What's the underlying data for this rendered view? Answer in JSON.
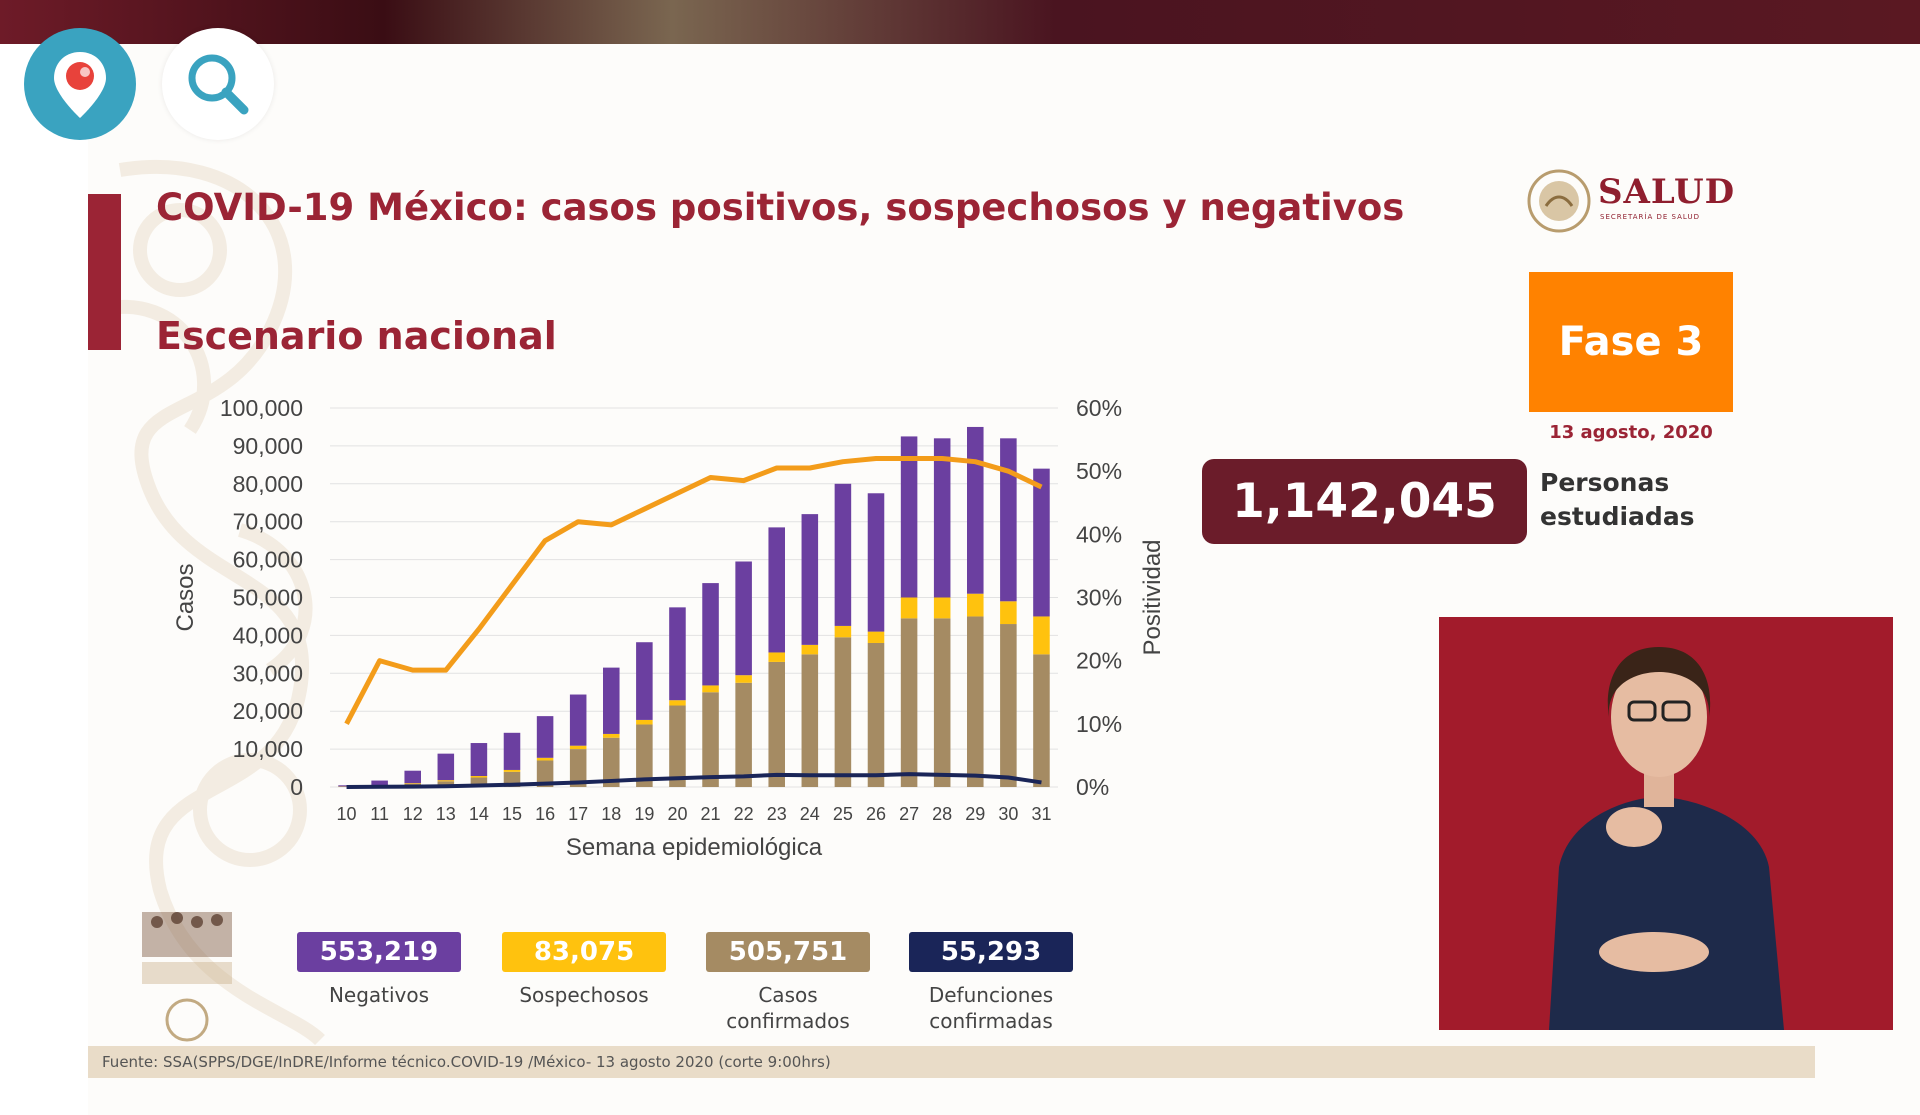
{
  "header": {
    "title": "COVID-19 México: casos positivos, sospechosos y negativos",
    "subtitle": "Escenario nacional",
    "logo_text": "SALUD",
    "logo_subtext": "SECRETARÍA DE SALUD"
  },
  "phase": {
    "label": "Fase 3",
    "date": "13 agosto, 2020"
  },
  "studied": {
    "value": "1,142,045",
    "label_line1": "Personas",
    "label_line2": "estudiadas"
  },
  "legend": [
    {
      "value": "553,219",
      "label_line1": "Negativos",
      "label_line2": "",
      "color": "#6b3fa0"
    },
    {
      "value": "83,075",
      "label_line1": "Sospechosos",
      "label_line2": "",
      "color": "#ffc20e"
    },
    {
      "value": "505,751",
      "label_line1": "Casos",
      "label_line2": "confirmados",
      "color": "#a58b63"
    },
    {
      "value": "55,293",
      "label_line1": "Defunciones",
      "label_line2": "confirmadas",
      "color": "#1a2558"
    }
  ],
  "footer": {
    "source": "Fuente: SSA(SPPS/DGE/InDRE/Informe técnico.COVID-19 /México- 13 agosto 2020 (corte 9:00hrs)"
  },
  "icons": {
    "periscope": "periscope-pin-icon",
    "search": "search-icon"
  },
  "colors": {
    "negativos": "#6b3fa0",
    "sospechosos": "#ffc20e",
    "confirmados": "#a58b63",
    "defunciones": "#1a2558",
    "positividad": "#f39c1a",
    "accent": "#9b2435"
  },
  "chart_data": {
    "type": "bar",
    "stacked": true,
    "categories": [
      "10",
      "11",
      "12",
      "13",
      "14",
      "15",
      "16",
      "17",
      "18",
      "19",
      "20",
      "21",
      "22",
      "23",
      "24",
      "25",
      "26",
      "27",
      "28",
      "29",
      "30",
      "31"
    ],
    "xlabel": "Semana epidemiológica",
    "ylabel": "Casos",
    "y2label": "Positividad",
    "ylim": [
      0,
      100000
    ],
    "y2lim": [
      0,
      60
    ],
    "y_ticks": [
      "0",
      "10,000",
      "20,000",
      "30,000",
      "40,000",
      "50,000",
      "60,000",
      "70,000",
      "80,000",
      "90,000",
      "100,000"
    ],
    "y2_ticks": [
      "0%",
      "10%",
      "20%",
      "30%",
      "40%",
      "50%",
      "60%"
    ],
    "grid": true,
    "series": [
      {
        "name": "Casos confirmados",
        "kind": "bar",
        "values": [
          100,
          400,
          800,
          1500,
          2500,
          4000,
          7000,
          10000,
          13000,
          16500,
          21500,
          25000,
          27500,
          33000,
          35000,
          39500,
          38000,
          44500,
          44500,
          45000,
          43000,
          35000
        ]
      },
      {
        "name": "Sospechosos",
        "kind": "bar",
        "values": [
          50,
          100,
          200,
          300,
          400,
          500,
          700,
          900,
          1000,
          1200,
          1400,
          1800,
          2000,
          2500,
          2500,
          3000,
          3000,
          5500,
          5500,
          6000,
          6000,
          10000
        ]
      },
      {
        "name": "Negativos",
        "kind": "bar",
        "values": [
          300,
          1200,
          3300,
          7000,
          8700,
          9800,
          11000,
          13500,
          17500,
          20500,
          24500,
          27000,
          30000,
          33000,
          34500,
          37500,
          36500,
          42500,
          42000,
          44000,
          43000,
          39000
        ]
      },
      {
        "name": "Defunciones confirmadas",
        "kind": "line",
        "axis": "left",
        "values": [
          0,
          50,
          100,
          200,
          400,
          600,
          900,
          1200,
          1600,
          2000,
          2300,
          2600,
          2800,
          3200,
          3100,
          3100,
          3100,
          3400,
          3200,
          3000,
          2500,
          1200
        ]
      },
      {
        "name": "Positividad",
        "kind": "line",
        "axis": "right",
        "values": [
          10,
          20,
          18.5,
          18.5,
          25,
          32,
          39,
          42,
          41.5,
          44,
          46.5,
          49,
          48.5,
          50.5,
          50.5,
          51.5,
          52,
          52,
          52,
          51.5,
          50,
          47.5
        ]
      }
    ]
  }
}
